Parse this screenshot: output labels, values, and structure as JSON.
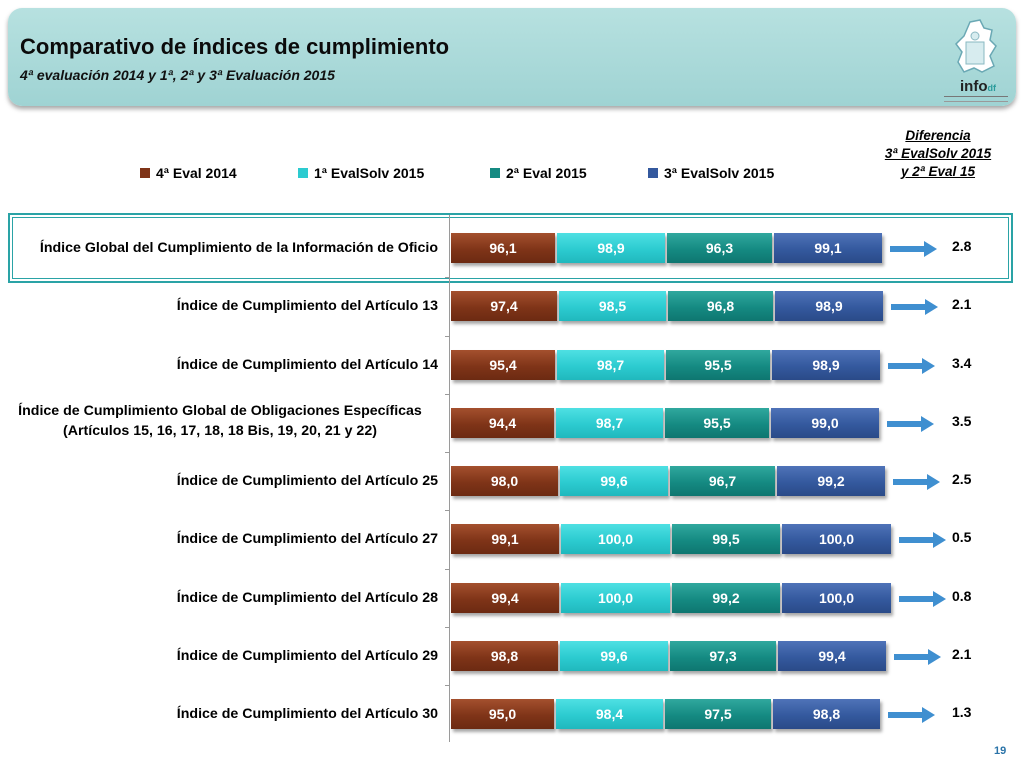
{
  "header": {
    "title": "Comparativo de índices de cumplimiento",
    "subtitle": "4ª evaluación 2014 y 1ª, 2ª y 3ª Evaluación 2015",
    "logo_text": "info",
    "logo_suffix": "df"
  },
  "difference_header": {
    "line1": "Diferencia",
    "line2": "3ª EvalSolv 2015",
    "line3": "y 2ª Eval 15"
  },
  "page_number": "19",
  "colors": {
    "series_0": "#7f3418",
    "series_1": "#2ccbd0",
    "series_2": "#158a82",
    "series_3": "#34599e",
    "highlight_border": "#2aa3a6",
    "title_panel": "#a9d9d8",
    "arrow": "#3f8fd0"
  },
  "chart_data": {
    "type": "bar",
    "orientation": "horizontal",
    "stacked": true,
    "legend_position": "top",
    "categories": [
      "Índice Global del Cumplimiento de la Información de Oficio",
      "Índice de Cumplimiento del Artículo 13",
      "Índice de Cumplimiento del Artículo 14",
      "Índice de Cumplimiento Global de Obligaciones Específicas (Artículos 15, 16, 17, 18, 18 Bis, 19, 20, 21 y 22)",
      "Índice de Cumplimiento del Artículo 25",
      "Índice de Cumplimiento del Artículo 27",
      "Índice de Cumplimiento del Artículo 28",
      "Índice de Cumplimiento del Artículo 29",
      "Índice de Cumplimiento del Artículo 30"
    ],
    "category_lines": [
      [
        "Índice Global del Cumplimiento de la Información de Oficio"
      ],
      [
        "Índice de Cumplimiento del Artículo 13"
      ],
      [
        "Índice de Cumplimiento del Artículo 14"
      ],
      [
        "Índice de Cumplimiento Global de Obligaciones Específicas",
        "(Artículos 15, 16, 17, 18, 18 Bis, 19, 20, 21 y 22)"
      ],
      [
        "Índice de Cumplimiento del Artículo 25"
      ],
      [
        "Índice de Cumplimiento del Artículo 27"
      ],
      [
        "Índice de Cumplimiento del Artículo 28"
      ],
      [
        "Índice de Cumplimiento del Artículo 29"
      ],
      [
        "Índice de Cumplimiento del Artículo 30"
      ]
    ],
    "series": [
      {
        "name": "4ª Eval 2014",
        "values": [
          96.1,
          97.4,
          95.4,
          94.4,
          98.0,
          99.1,
          99.4,
          98.8,
          95.0
        ],
        "labels": [
          "96,1",
          "97,4",
          "95,4",
          "94,4",
          "98,0",
          "99,1",
          "99,4",
          "98,8",
          "95,0"
        ]
      },
      {
        "name": "1ª EvalSolv 2015",
        "values": [
          98.9,
          98.5,
          98.7,
          98.7,
          99.6,
          100.0,
          100.0,
          99.6,
          98.4
        ],
        "labels": [
          "98,9",
          "98,5",
          "98,7",
          "98,7",
          "99,6",
          "100,0",
          "100,0",
          "99,6",
          "98,4"
        ]
      },
      {
        "name": "2ª Eval 2015",
        "values": [
          96.3,
          96.8,
          95.5,
          95.5,
          96.7,
          99.5,
          99.2,
          97.3,
          97.5
        ],
        "labels": [
          "96,3",
          "96,8",
          "95,5",
          "95,5",
          "96,7",
          "99,5",
          "99,2",
          "97,3",
          "97,5"
        ]
      },
      {
        "name": "3ª EvalSolv 2015",
        "values": [
          99.1,
          98.9,
          98.9,
          99.0,
          99.2,
          100.0,
          100.0,
          99.4,
          98.8
        ],
        "labels": [
          "99,1",
          "98,9",
          "98,9",
          "99,0",
          "99,2",
          "100,0",
          "100,0",
          "99,4",
          "98,8"
        ]
      }
    ],
    "difference_labels": [
      "2.8",
      "2.1",
      "3.4",
      "3.5",
      "2.5",
      "0.5",
      "0.8",
      "2.1",
      "1.3"
    ],
    "highlighted_category": "Índice Global del Cumplimiento de la Información de Oficio",
    "grid": false
  }
}
